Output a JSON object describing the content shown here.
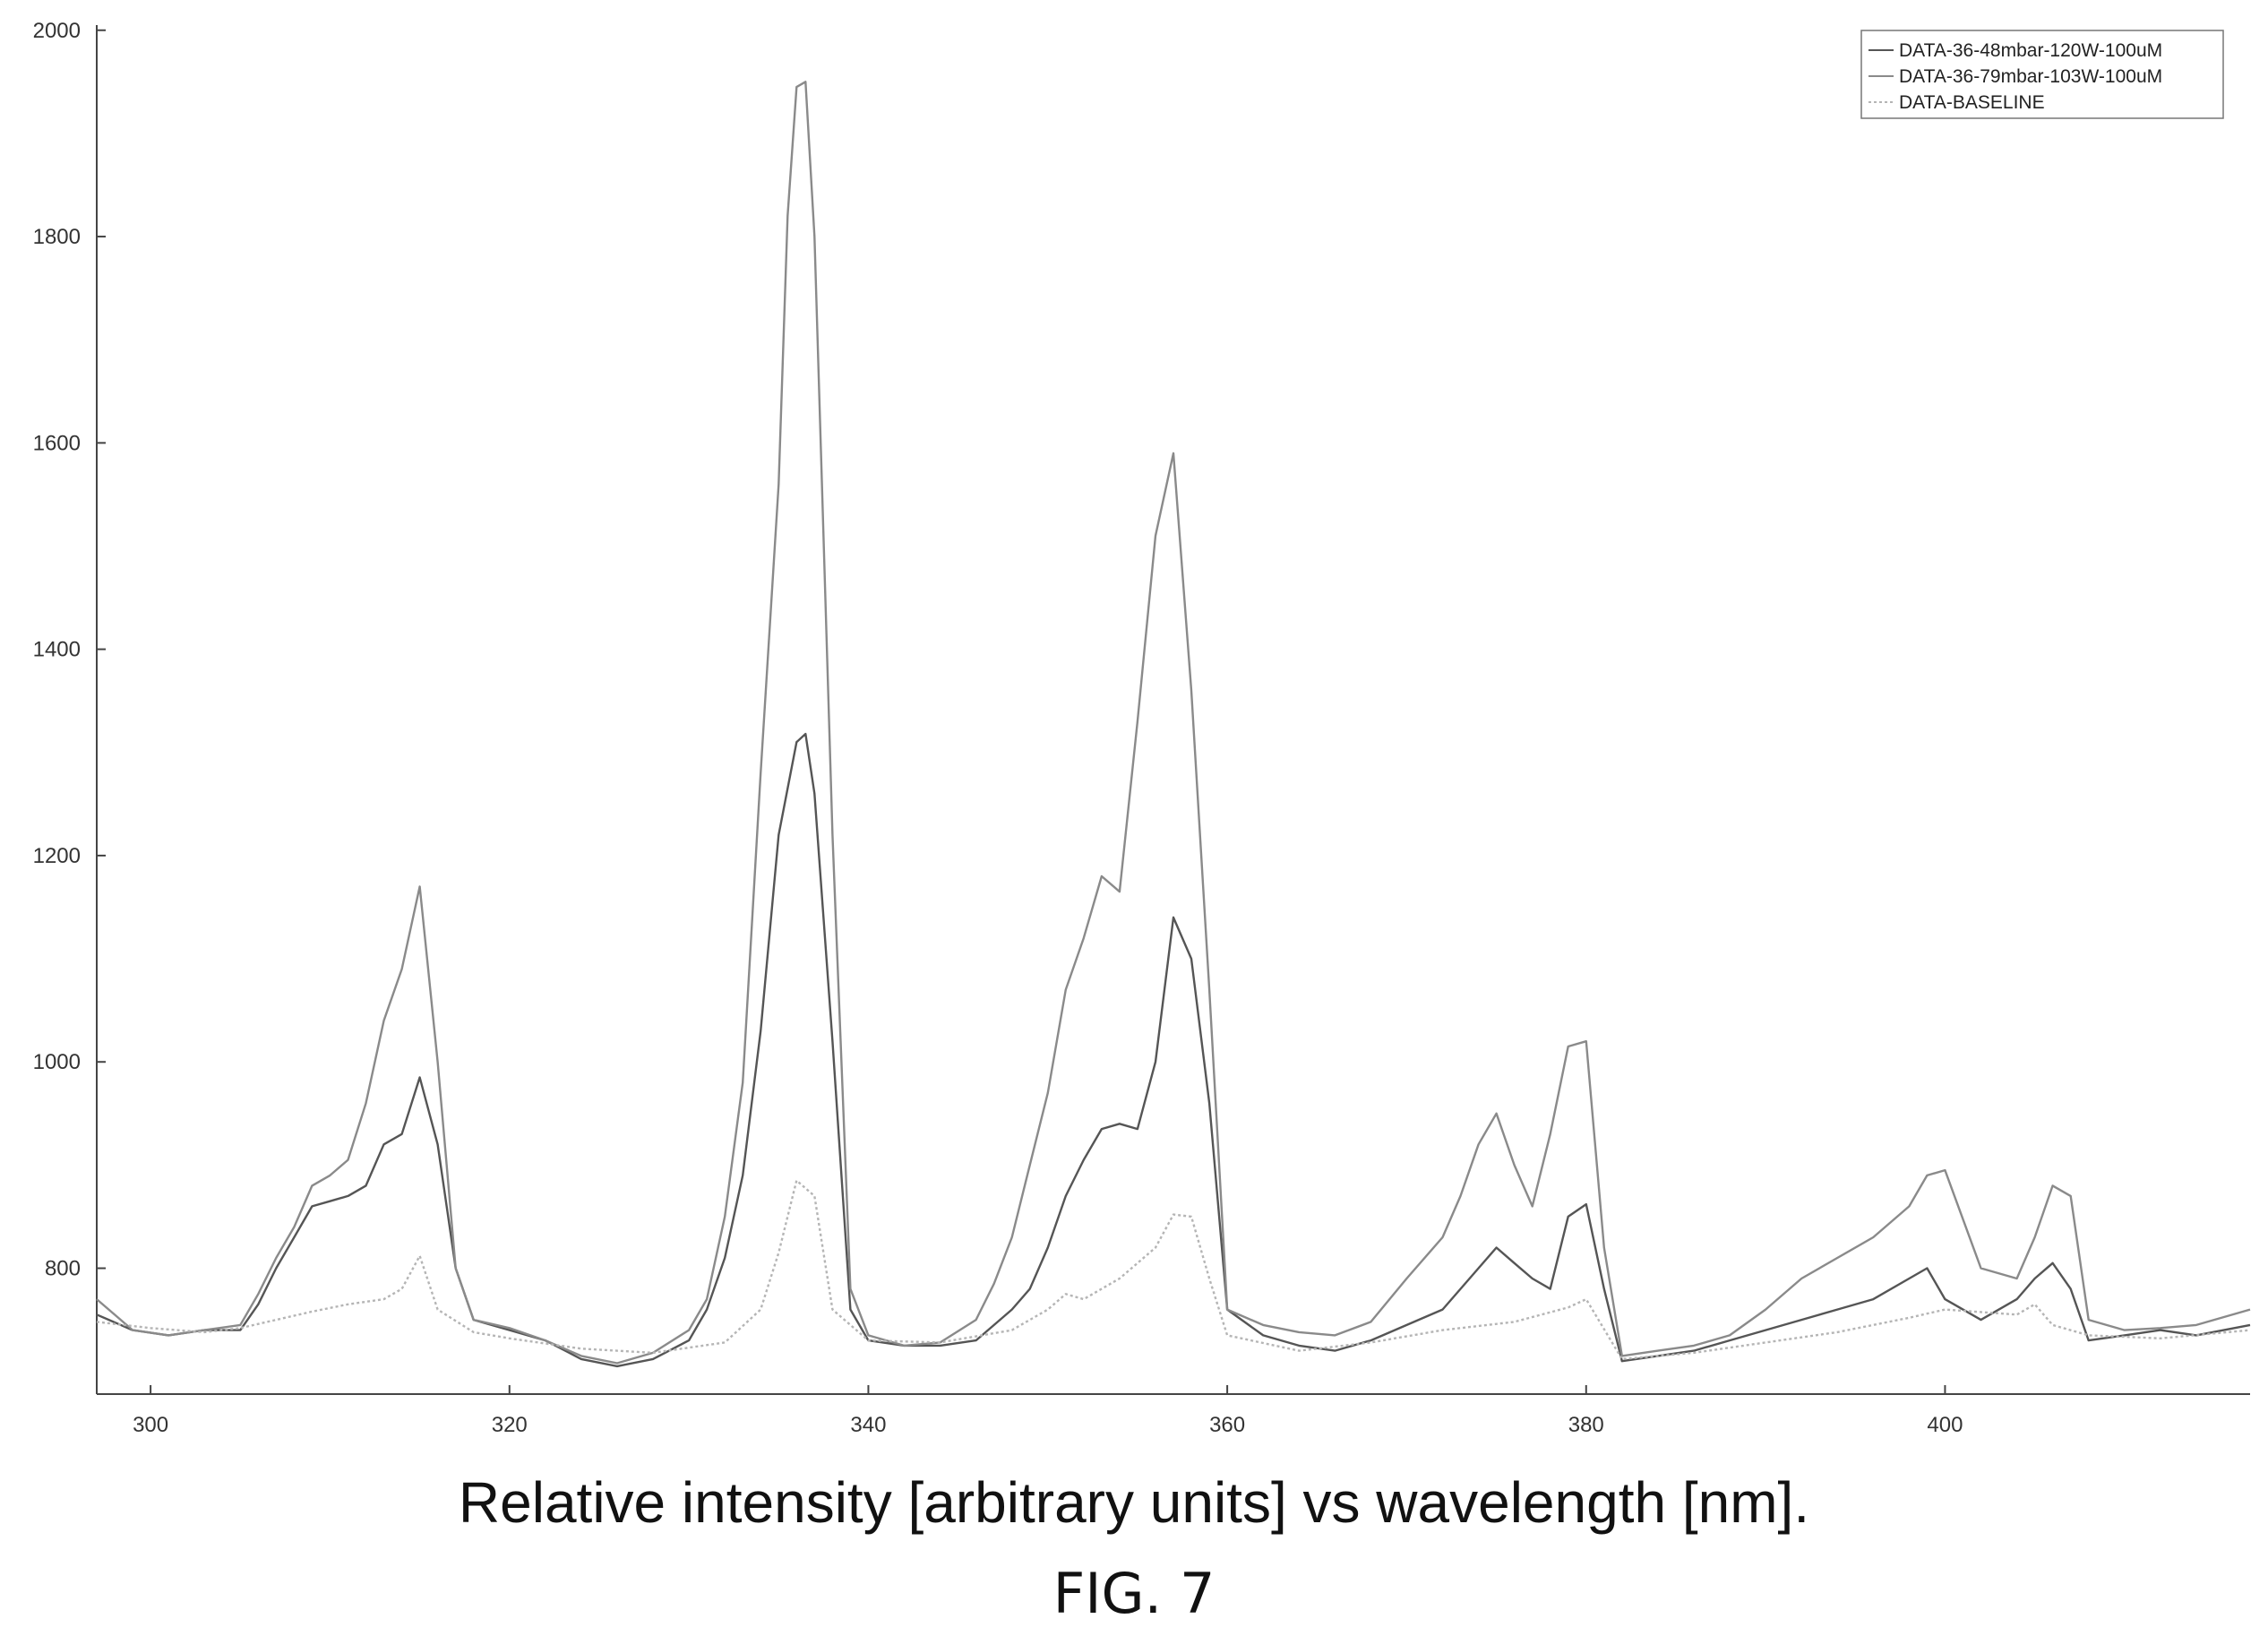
{
  "chart_data": {
    "type": "line",
    "xlabel": "",
    "ylabel": "",
    "xlim": [
      297,
      417
    ],
    "ylim": [
      678,
      2005
    ],
    "xticks": [
      300,
      320,
      340,
      360,
      380,
      400
    ],
    "yticks": [
      800,
      1000,
      1200,
      1400,
      1600,
      1800,
      2000
    ],
    "grid": false,
    "legend_position": "top-right",
    "series": [
      {
        "name": "DATA-36-48mbar-120W-100uM",
        "color": "#555555",
        "dash": "solid",
        "x": [
          297,
          299,
          301,
          303,
          305,
          306,
          307,
          308,
          309,
          310,
          311,
          312,
          313,
          314,
          315,
          316,
          317,
          318,
          320,
          322,
          324,
          326,
          328,
          330,
          331,
          332,
          333,
          334,
          335,
          336,
          336.5,
          337,
          338,
          339,
          340,
          342,
          344,
          346,
          347,
          348,
          349,
          350,
          351,
          352,
          353,
          354,
          355,
          356,
          357,
          358,
          359,
          360,
          362,
          364,
          366,
          368,
          370,
          372,
          373,
          374,
          375,
          376,
          377,
          378,
          379,
          380,
          381,
          382,
          384,
          386,
          388,
          390,
          392,
          394,
          396,
          398,
          399,
          400,
          402,
          404,
          405,
          406,
          407,
          408,
          410,
          412,
          414,
          417
        ],
        "y": [
          755,
          740,
          735,
          740,
          740,
          765,
          800,
          830,
          860,
          865,
          870,
          880,
          920,
          930,
          985,
          920,
          800,
          750,
          740,
          730,
          712,
          705,
          712,
          730,
          760,
          810,
          890,
          1030,
          1220,
          1310,
          1318,
          1260,
          1020,
          760,
          730,
          725,
          725,
          730,
          745,
          760,
          780,
          820,
          870,
          905,
          935,
          940,
          935,
          1000,
          1140,
          1100,
          960,
          760,
          735,
          725,
          720,
          730,
          745,
          760,
          780,
          800,
          820,
          805,
          790,
          780,
          850,
          862,
          780,
          710,
          715,
          720,
          730,
          740,
          750,
          760,
          770,
          790,
          800,
          770,
          750,
          770,
          790,
          805,
          780,
          730,
          735,
          740,
          735,
          745
        ]
      },
      {
        "name": "DATA-36-79mbar-103W-100uM",
        "color": "#8a8a8a",
        "dash": "solid",
        "x": [
          297,
          299,
          301,
          303,
          305,
          306,
          307,
          308,
          309,
          310,
          311,
          312,
          313,
          314,
          315,
          316,
          317,
          318,
          320,
          322,
          324,
          326,
          328,
          330,
          331,
          332,
          333,
          334,
          335,
          335.5,
          336,
          336.5,
          337,
          338,
          339,
          340,
          342,
          344,
          346,
          347,
          348,
          349,
          350,
          351,
          352,
          353,
          354,
          355,
          356,
          357,
          358,
          359,
          360,
          362,
          364,
          366,
          368,
          370,
          372,
          373,
          374,
          375,
          376,
          377,
          378,
          379,
          380,
          381,
          382,
          384,
          386,
          388,
          390,
          392,
          394,
          396,
          398,
          399,
          400,
          402,
          404,
          405,
          406,
          407,
          408,
          410,
          412,
          414,
          417
        ],
        "y": [
          770,
          740,
          735,
          740,
          745,
          775,
          810,
          840,
          880,
          890,
          905,
          960,
          1040,
          1090,
          1170,
          1000,
          800,
          750,
          742,
          730,
          715,
          708,
          718,
          740,
          770,
          850,
          980,
          1280,
          1560,
          1820,
          1945,
          1950,
          1800,
          1220,
          780,
          735,
          725,
          728,
          750,
          785,
          830,
          900,
          970,
          1070,
          1120,
          1180,
          1165,
          1330,
          1510,
          1590,
          1360,
          1070,
          760,
          745,
          738,
          735,
          748,
          790,
          830,
          870,
          920,
          950,
          900,
          860,
          930,
          1015,
          1020,
          820,
          715,
          720,
          725,
          735,
          760,
          790,
          810,
          830,
          860,
          890,
          895,
          800,
          790,
          830,
          880,
          870,
          750,
          740,
          742,
          745,
          760
        ]
      },
      {
        "name": "DATA-BASELINE",
        "color": "#b5b5b5",
        "dash": "3,3",
        "x": [
          297,
          300,
          303,
          305,
          307,
          309,
          311,
          313,
          314,
          315,
          316,
          318,
          320,
          324,
          328,
          332,
          334,
          335,
          336,
          337,
          338,
          340,
          344,
          348,
          350,
          351,
          352,
          354,
          356,
          357,
          358,
          359,
          360,
          364,
          368,
          372,
          376,
          379,
          380,
          382,
          386,
          390,
          394,
          398,
          400,
          404,
          405,
          406,
          408,
          412,
          417
        ],
        "y": [
          748,
          742,
          738,
          742,
          750,
          758,
          765,
          770,
          780,
          812,
          760,
          738,
          732,
          722,
          718,
          728,
          760,
          815,
          885,
          870,
          760,
          730,
          728,
          740,
          760,
          775,
          770,
          790,
          820,
          852,
          850,
          790,
          735,
          720,
          728,
          740,
          748,
          762,
          770,
          712,
          718,
          728,
          738,
          752,
          760,
          755,
          765,
          745,
          735,
          732,
          740
        ]
      }
    ]
  },
  "caption": "Relative intensity [arbitrary units] vs wavelength [nm].",
  "figure_label": "FIG. 7"
}
